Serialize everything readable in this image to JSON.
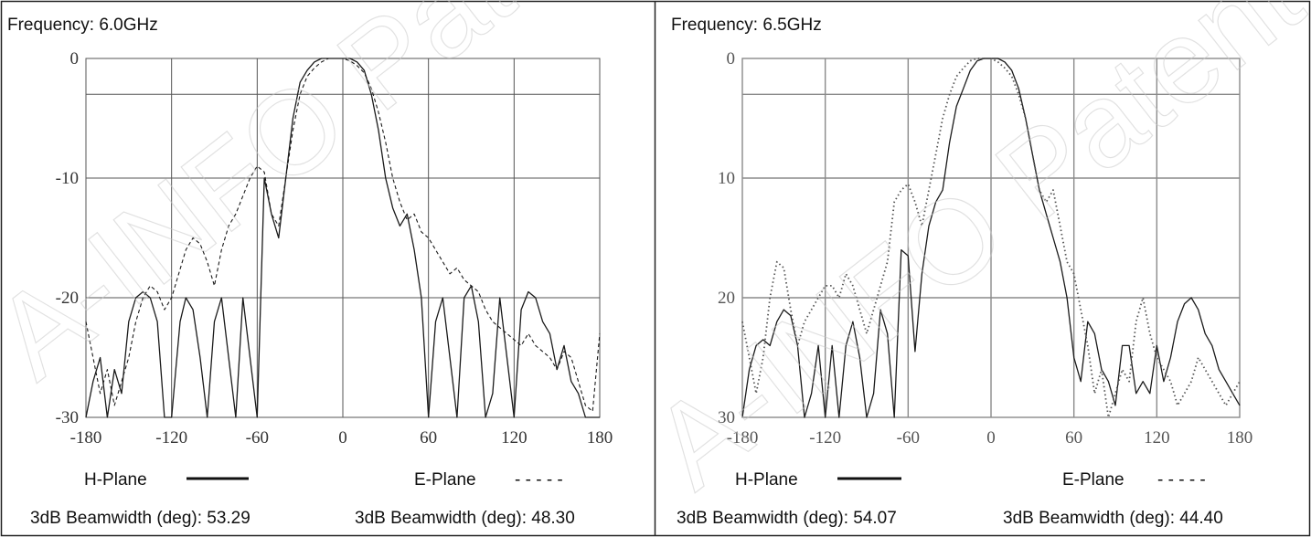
{
  "watermark": "A-INFO Patent Approved",
  "panels": [
    {
      "frequency_label": "Frequency: 6.0GHz",
      "legend": {
        "h_plane": "H-Plane",
        "e_plane": "E-Plane",
        "e_plane_dashes": "- - - - -"
      },
      "beamwidth_h": "3dB Beamwidth (deg): 53.29",
      "beamwidth_e": "3dB Beamwidth (deg): 48.30"
    },
    {
      "frequency_label": "Frequency: 6.5GHz",
      "legend": {
        "h_plane": "H-Plane",
        "e_plane": "E-Plane",
        "e_plane_dashes": "- - - - -"
      },
      "beamwidth_h": "3dB Beamwidth (deg): 54.07",
      "beamwidth_e": "3dB Beamwidth (deg): 44.40"
    }
  ],
  "chart_data": [
    {
      "type": "line",
      "xlim": [
        -180,
        180
      ],
      "ylim": [
        -30,
        0
      ],
      "xticks": [
        "-180",
        "-120",
        "-60",
        "0",
        "60",
        "120",
        "180"
      ],
      "yticks": [
        "0",
        "-10",
        "-20",
        "-30"
      ],
      "grid": true,
      "series": [
        {
          "name": "H-Plane",
          "style": "solid",
          "x": [
            -180,
            -175,
            -170,
            -165,
            -160,
            -155,
            -150,
            -145,
            -140,
            -135,
            -130,
            -125,
            -120,
            -117,
            -114,
            -110,
            -105,
            -100,
            -95,
            -90,
            -85,
            -80,
            -75,
            -70,
            -65,
            -60,
            -55,
            -50,
            -45,
            -40,
            -35,
            -30,
            -25,
            -20,
            -15,
            -10,
            -5,
            0,
            5,
            10,
            15,
            20,
            25,
            30,
            35,
            40,
            45,
            50,
            55,
            60,
            65,
            70,
            75,
            80,
            85,
            90,
            95,
            100,
            105,
            110,
            115,
            120,
            125,
            130,
            135,
            140,
            145,
            150,
            155,
            160,
            165,
            170,
            175,
            180
          ],
          "y": [
            -30,
            -27,
            -25,
            -30,
            -26,
            -28,
            -22,
            -20,
            -19.5,
            -20,
            -22,
            -30,
            -30,
            -26,
            -22,
            -20,
            -21,
            -25,
            -30,
            -22,
            -20,
            -25,
            -30,
            -20,
            -25,
            -30,
            -10,
            -13,
            -15,
            -10,
            -5,
            -2,
            -1,
            -0.3,
            0,
            0,
            0,
            0,
            0,
            -0.3,
            -1,
            -3,
            -6,
            -10,
            -12.5,
            -14,
            -13,
            -16,
            -20,
            -30,
            -22,
            -20,
            -25,
            -30,
            -20,
            -19,
            -22,
            -30,
            -28,
            -20,
            -25,
            -30,
            -21,
            -19.5,
            -20,
            -22,
            -23,
            -26,
            -24,
            -27,
            -28,
            -30,
            -30,
            -30
          ]
        },
        {
          "name": "E-Plane",
          "style": "dashed",
          "x": [
            -180,
            -175,
            -170,
            -165,
            -160,
            -155,
            -150,
            -145,
            -140,
            -135,
            -130,
            -125,
            -120,
            -115,
            -110,
            -105,
            -100,
            -95,
            -90,
            -85,
            -80,
            -75,
            -70,
            -65,
            -60,
            -55,
            -50,
            -45,
            -40,
            -35,
            -30,
            -25,
            -20,
            -15,
            -10,
            -5,
            0,
            5,
            10,
            15,
            20,
            25,
            30,
            35,
            40,
            45,
            50,
            55,
            60,
            65,
            70,
            75,
            80,
            85,
            90,
            95,
            100,
            105,
            110,
            115,
            120,
            125,
            130,
            135,
            140,
            145,
            150,
            155,
            160,
            165,
            170,
            175,
            180
          ],
          "y": [
            -22,
            -25,
            -28,
            -26,
            -29,
            -27,
            -25,
            -22,
            -20,
            -19,
            -19.5,
            -21,
            -20,
            -18,
            -16,
            -15,
            -15.5,
            -17,
            -19,
            -16,
            -14,
            -13,
            -11.5,
            -10,
            -9,
            -9.5,
            -13,
            -14,
            -10,
            -6,
            -3,
            -1.5,
            -0.8,
            -0.3,
            0,
            0,
            0,
            -0.2,
            -0.6,
            -1.2,
            -2.5,
            -4.5,
            -7,
            -10,
            -12,
            -13.5,
            -13,
            -14.5,
            -15,
            -16,
            -17,
            -18,
            -17.5,
            -18.5,
            -19,
            -19.5,
            -21,
            -22,
            -22.5,
            -23,
            -23.5,
            -24,
            -23,
            -24,
            -24.5,
            -25,
            -26,
            -24.5,
            -25,
            -27,
            -29,
            -29.5,
            -23
          ]
        }
      ]
    },
    {
      "type": "line",
      "xlim": [
        -180,
        180
      ],
      "ylim": [
        -30,
        0
      ],
      "xticks": [
        "-180",
        "-120",
        "-60",
        "0",
        "60",
        "120",
        "180"
      ],
      "yticks": [
        "0",
        "10",
        "20",
        "30"
      ],
      "grid": true,
      "series": [
        {
          "name": "H-Plane",
          "style": "solid",
          "x": [
            -180,
            -175,
            -170,
            -165,
            -160,
            -155,
            -150,
            -145,
            -140,
            -135,
            -130,
            -125,
            -120,
            -115,
            -110,
            -105,
            -100,
            -95,
            -90,
            -85,
            -80,
            -75,
            -70,
            -65,
            -60,
            -55,
            -50,
            -45,
            -40,
            -35,
            -30,
            -25,
            -20,
            -15,
            -10,
            -5,
            0,
            5,
            10,
            15,
            20,
            25,
            30,
            35,
            40,
            45,
            50,
            55,
            60,
            65,
            70,
            75,
            80,
            85,
            90,
            95,
            100,
            105,
            110,
            115,
            120,
            125,
            130,
            135,
            140,
            145,
            150,
            155,
            160,
            165,
            170,
            175,
            180
          ],
          "y": [
            -30,
            -26,
            -24,
            -23.5,
            -24,
            -22,
            -21,
            -21.5,
            -24,
            -30,
            -28,
            -24,
            -30,
            -24,
            -30,
            -24,
            -22,
            -25,
            -30,
            -28,
            -21,
            -23,
            -30,
            -16,
            -16.5,
            -24.5,
            -18,
            -14,
            -12,
            -11,
            -7,
            -4,
            -2.5,
            -1,
            -0.2,
            0,
            0,
            0,
            -0.3,
            -1,
            -2.5,
            -5,
            -8,
            -11,
            -13,
            -15,
            -17,
            -20,
            -25,
            -27,
            -22,
            -23,
            -26,
            -27,
            -29,
            -24,
            -24,
            -28,
            -27,
            -28,
            -24,
            -27,
            -25,
            -22,
            -20.5,
            -20,
            -21,
            -23,
            -24,
            -26,
            -27,
            -28,
            -29
          ]
        },
        {
          "name": "E-Plane",
          "style": "dotted",
          "x": [
            -180,
            -175,
            -170,
            -165,
            -160,
            -155,
            -150,
            -145,
            -140,
            -135,
            -130,
            -125,
            -120,
            -115,
            -110,
            -105,
            -100,
            -95,
            -90,
            -85,
            -80,
            -75,
            -70,
            -65,
            -60,
            -55,
            -50,
            -45,
            -40,
            -35,
            -30,
            -25,
            -20,
            -15,
            -10,
            -5,
            0,
            5,
            10,
            15,
            20,
            25,
            30,
            35,
            40,
            45,
            50,
            55,
            60,
            65,
            70,
            75,
            80,
            85,
            90,
            95,
            100,
            105,
            110,
            115,
            120,
            125,
            130,
            135,
            140,
            145,
            150,
            155,
            160,
            165,
            170,
            175,
            180
          ],
          "y": [
            -22,
            -25,
            -28,
            -25,
            -20,
            -17,
            -17.5,
            -21,
            -24,
            -22,
            -21,
            -20,
            -19,
            -19,
            -20,
            -18,
            -19,
            -21,
            -23,
            -21,
            -19,
            -17,
            -12,
            -11,
            -10.5,
            -12,
            -14,
            -11,
            -8,
            -5,
            -3,
            -1.5,
            -0.8,
            -0.2,
            0,
            0,
            0,
            -0.3,
            -0.8,
            -1.5,
            -3,
            -5,
            -8,
            -11,
            -12,
            -11,
            -14,
            -17,
            -18,
            -21,
            -24,
            -28,
            -26,
            -30,
            -28,
            -26,
            -27,
            -22,
            -20,
            -23,
            -25,
            -26,
            -27,
            -29,
            -28,
            -27,
            -25,
            -26,
            -27,
            -28,
            -29,
            -28,
            -27
          ]
        }
      ]
    }
  ]
}
